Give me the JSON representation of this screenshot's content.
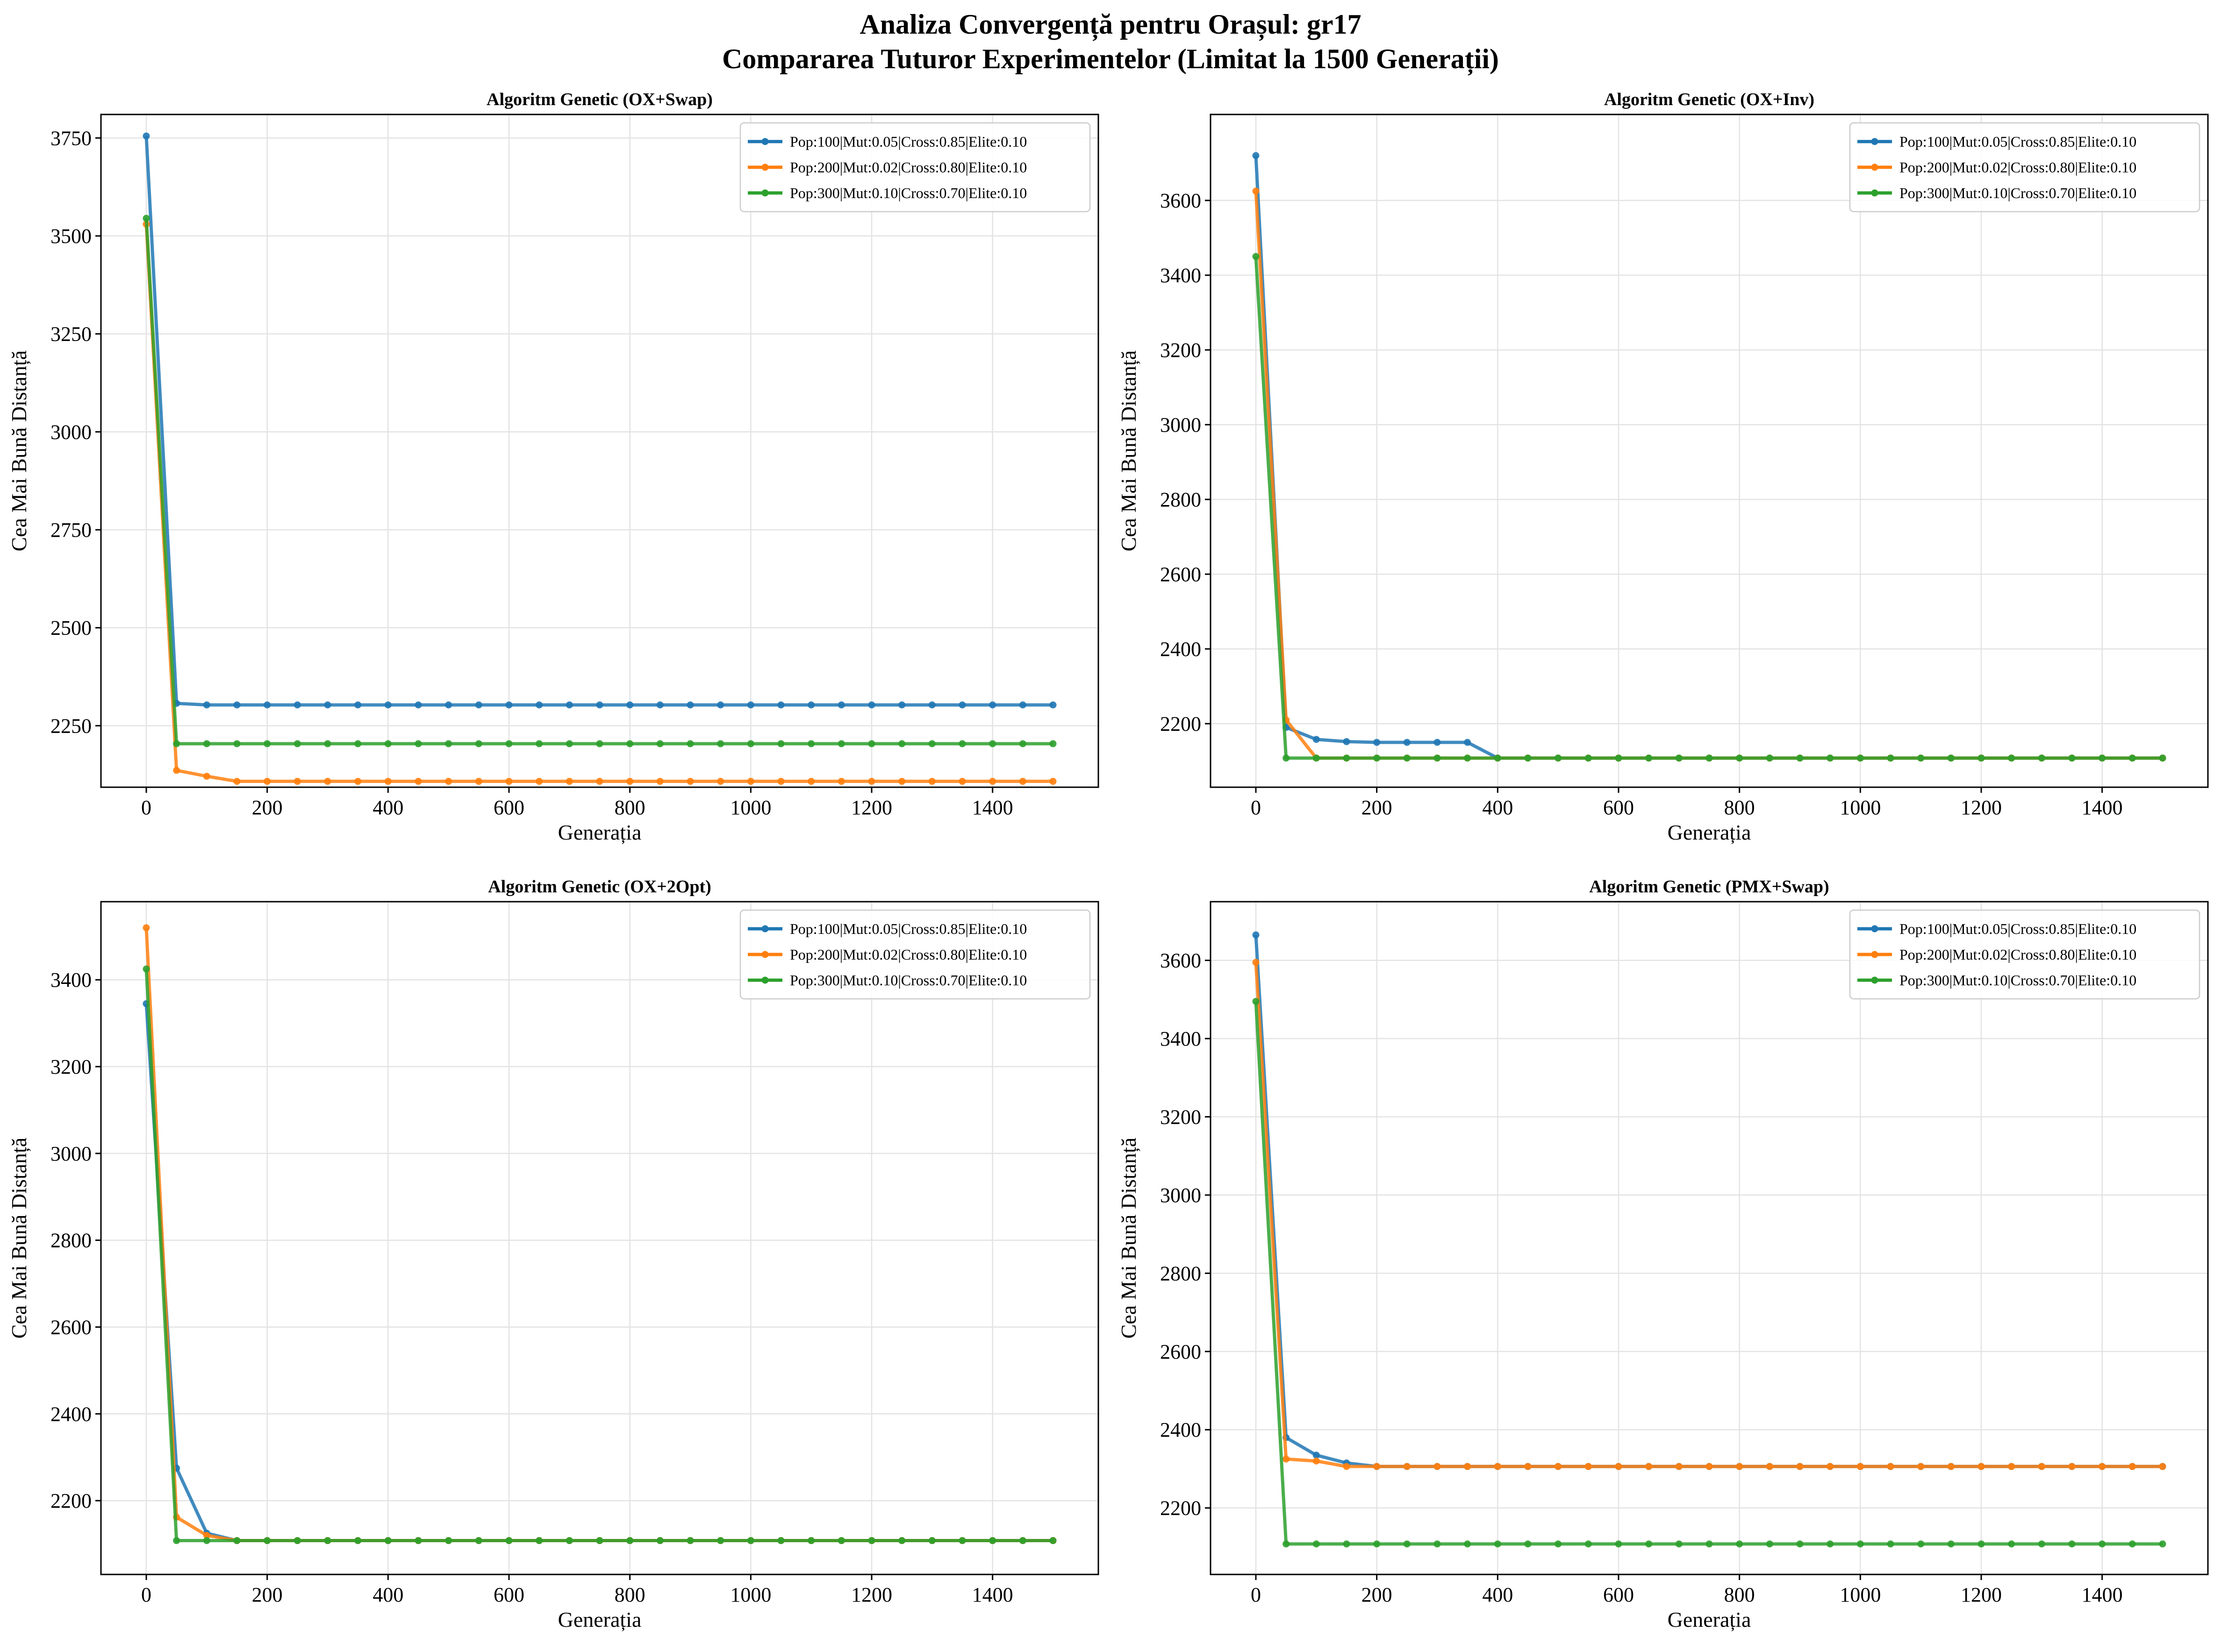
{
  "figure": {
    "title_line1": "Analiza Convergență pentru Orașul: gr17",
    "title_line2": "Compararea Tuturor Experimentelor (Limitat la 1500 Generații)"
  },
  "colors": {
    "blue": "#1f77b4",
    "orange": "#ff7f0e",
    "green": "#2ca02c"
  },
  "chart_data": [
    {
      "type": "line",
      "title": "Algoritm Genetic (OX+Swap)",
      "xlabel": "Generația",
      "ylabel": "Cea Mai Bună Distanță",
      "xlim": [
        -75,
        1575
      ],
      "ylim": [
        2093,
        3810
      ],
      "xticks": [
        0,
        200,
        400,
        600,
        800,
        1000,
        1200,
        1400
      ],
      "yticks": [
        2250,
        2500,
        2750,
        3000,
        3250,
        3500,
        3750
      ],
      "grid": true,
      "legend": "top-right",
      "series": [
        {
          "name": "Pop:100|Mut:0.05|Cross:0.85|Elite:0.10",
          "color": "#1f77b4",
          "start": 3755,
          "gen50": 2307,
          "rest": [
            [
              100,
              2303
            ]
          ],
          "plateau": 2303
        },
        {
          "name": "Pop:200|Mut:0.02|Cross:0.80|Elite:0.10",
          "color": "#ff7f0e",
          "start": 3530,
          "gen50": 2136,
          "rest": [
            [
              100,
              2121
            ],
            [
              150,
              2108
            ]
          ],
          "plateau": 2108
        },
        {
          "name": "Pop:300|Mut:0.10|Cross:0.70|Elite:0.10",
          "color": "#2ca02c",
          "start": 3545,
          "gen50": 2204,
          "rest": [],
          "plateau": 2204
        }
      ]
    },
    {
      "type": "line",
      "title": "Algoritm Genetic (OX+Inv)",
      "xlabel": "Generația",
      "ylabel": "Cea Mai Bună Distanță",
      "xlim": [
        -75,
        1575
      ],
      "ylim": [
        2030,
        3830
      ],
      "xticks": [
        0,
        200,
        400,
        600,
        800,
        1000,
        1200,
        1400
      ],
      "yticks": [
        2200,
        2400,
        2600,
        2800,
        3000,
        3200,
        3400,
        3600
      ],
      "grid": true,
      "legend": "top-right",
      "series": [
        {
          "name": "Pop:100|Mut:0.05|Cross:0.85|Elite:0.10",
          "color": "#1f77b4",
          "start": 3720,
          "gen50": 2190,
          "rest": [
            [
              100,
              2158
            ],
            [
              150,
              2152
            ],
            [
              200,
              2150
            ],
            [
              250,
              2150
            ],
            [
              300,
              2150
            ],
            [
              350,
              2150
            ],
            [
              400,
              2108
            ]
          ],
          "plateau": 2108
        },
        {
          "name": "Pop:200|Mut:0.02|Cross:0.80|Elite:0.10",
          "color": "#ff7f0e",
          "start": 3625,
          "gen50": 2210,
          "rest": [
            [
              100,
              2108
            ]
          ],
          "plateau": 2108
        },
        {
          "name": "Pop:300|Mut:0.10|Cross:0.70|Elite:0.10",
          "color": "#2ca02c",
          "start": 3450,
          "gen50": 2108,
          "rest": [],
          "plateau": 2108
        }
      ]
    },
    {
      "type": "line",
      "title": "Algoritm Genetic (OX+2Opt)",
      "xlabel": "Generația",
      "ylabel": "Cea Mai Bună Distanță",
      "xlim": [
        -75,
        1575
      ],
      "ylim": [
        2030,
        3580
      ],
      "xticks": [
        0,
        200,
        400,
        600,
        800,
        1000,
        1200,
        1400
      ],
      "yticks": [
        2200,
        2400,
        2600,
        2800,
        3000,
        3200,
        3400
      ],
      "grid": true,
      "legend": "top-right",
      "series": [
        {
          "name": "Pop:100|Mut:0.05|Cross:0.85|Elite:0.10",
          "color": "#1f77b4",
          "start": 3345,
          "gen50": 2275,
          "rest": [
            [
              100,
              2125
            ],
            [
              150,
              2108
            ]
          ],
          "plateau": 2108
        },
        {
          "name": "Pop:200|Mut:0.02|Cross:0.80|Elite:0.10",
          "color": "#ff7f0e",
          "start": 3520,
          "gen50": 2162,
          "rest": [
            [
              100,
              2120
            ],
            [
              150,
              2108
            ]
          ],
          "plateau": 2108
        },
        {
          "name": "Pop:300|Mut:0.10|Cross:0.70|Elite:0.10",
          "color": "#2ca02c",
          "start": 3425,
          "gen50": 2108,
          "rest": [],
          "plateau": 2108
        }
      ]
    },
    {
      "type": "line",
      "title": "Algoritm Genetic (PMX+Swap)",
      "xlabel": "Generația",
      "ylabel": "Cea Mai Bună Distanță",
      "xlim": [
        -75,
        1575
      ],
      "ylim": [
        2030,
        3750
      ],
      "xticks": [
        0,
        200,
        400,
        600,
        800,
        1000,
        1200,
        1400
      ],
      "yticks": [
        2200,
        2400,
        2600,
        2800,
        3000,
        3200,
        3400,
        3600
      ],
      "grid": true,
      "legend": "top-right",
      "series": [
        {
          "name": "Pop:100|Mut:0.05|Cross:0.85|Elite:0.10",
          "color": "#1f77b4",
          "start": 3665,
          "gen50": 2380,
          "rest": [
            [
              100,
              2335
            ],
            [
              150,
              2315
            ],
            [
              200,
              2306
            ]
          ],
          "plateau": 2306
        },
        {
          "name": "Pop:200|Mut:0.02|Cross:0.80|Elite:0.10",
          "color": "#ff7f0e",
          "start": 3595,
          "gen50": 2325,
          "rest": [
            [
              100,
              2320
            ],
            [
              150,
              2306
            ]
          ],
          "plateau": 2306
        },
        {
          "name": "Pop:300|Mut:0.10|Cross:0.70|Elite:0.10",
          "color": "#2ca02c",
          "start": 3495,
          "gen50": 2108,
          "rest": [],
          "plateau": 2108
        }
      ]
    }
  ]
}
